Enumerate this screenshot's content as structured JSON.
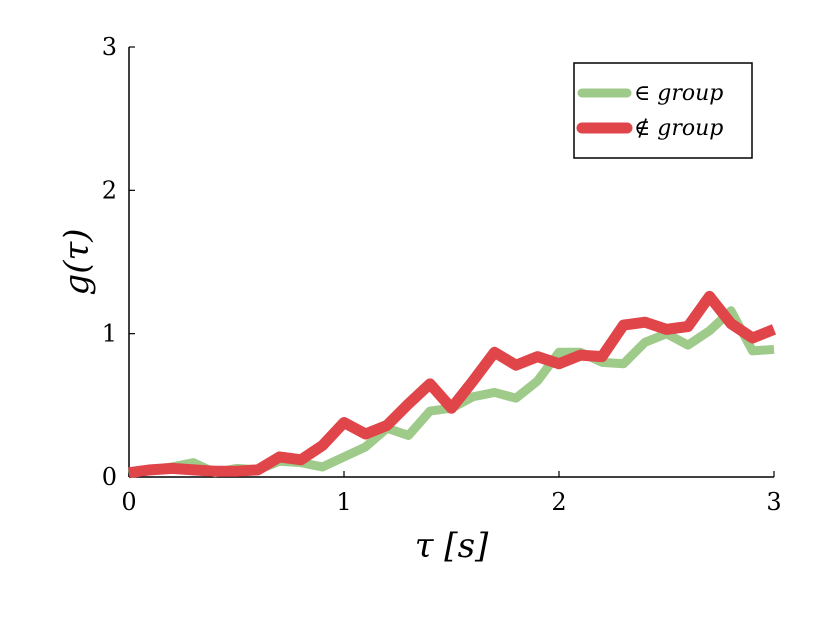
{
  "chart_data": {
    "type": "line",
    "xlabel": "τ [s]",
    "ylabel": "g(τ)",
    "xlim": [
      0,
      3
    ],
    "ylim": [
      0,
      3
    ],
    "x_ticks": [
      "0",
      "1",
      "2",
      "3"
    ],
    "y_ticks": [
      "0",
      "1",
      "2",
      "3"
    ],
    "grid": false,
    "legend_position": "top-right",
    "x": [
      0,
      0.1,
      0.2,
      0.3,
      0.4,
      0.5,
      0.6,
      0.7,
      0.8,
      0.9,
      1.0,
      1.1,
      1.2,
      1.3,
      1.4,
      1.5,
      1.6,
      1.7,
      1.8,
      1.9,
      2.0,
      2.1,
      2.2,
      2.3,
      2.4,
      2.5,
      2.6,
      2.7,
      2.8,
      2.9,
      3.0
    ],
    "series": [
      {
        "name": "∈ group",
        "color": "#93c47d",
        "values": [
          0.02,
          0.05,
          0.07,
          0.1,
          0.03,
          0.06,
          0.05,
          0.11,
          0.1,
          0.07,
          0.14,
          0.21,
          0.34,
          0.29,
          0.46,
          0.48,
          0.56,
          0.59,
          0.55,
          0.67,
          0.87,
          0.87,
          0.8,
          0.79,
          0.94,
          1.0,
          0.92,
          1.02,
          1.16,
          0.88,
          0.89
        ]
      },
      {
        "name": "∉ group",
        "color": "#e0454a",
        "values": [
          0.03,
          0.05,
          0.06,
          0.05,
          0.04,
          0.04,
          0.05,
          0.14,
          0.12,
          0.22,
          0.38,
          0.3,
          0.36,
          0.51,
          0.65,
          0.48,
          0.67,
          0.87,
          0.78,
          0.84,
          0.79,
          0.85,
          0.84,
          1.06,
          1.08,
          1.03,
          1.05,
          1.26,
          1.07,
          0.97,
          1.03
        ]
      }
    ]
  }
}
